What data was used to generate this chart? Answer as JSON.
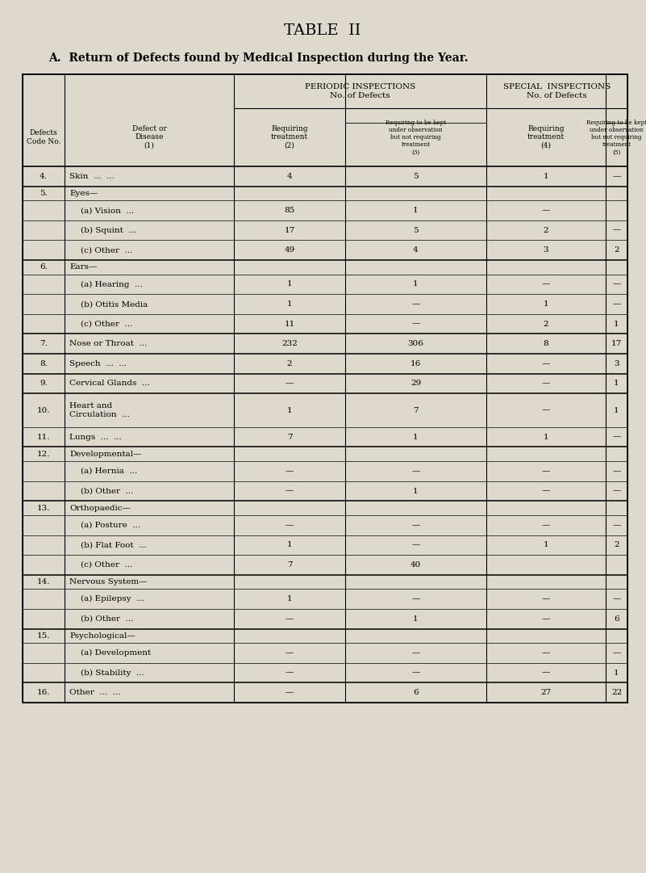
{
  "title": "TABLE  II",
  "subtitle": "A.  Return of Defects found by Medical Inspection during the Year.",
  "bg_color": "#ddd9cc",
  "rows": [
    {
      "code": "4.",
      "label": "Skin  ...  ...",
      "sub": false,
      "head": false,
      "c2": "4",
      "c3": "5",
      "c4": "1",
      "c5": "—"
    },
    {
      "code": "5.",
      "label": "Eyes—",
      "sub": false,
      "head": true,
      "c2": "",
      "c3": "",
      "c4": "",
      "c5": ""
    },
    {
      "code": "",
      "label": "(a) Vision  ...",
      "sub": true,
      "head": false,
      "c2": "85",
      "c3": "1",
      "c4": "—",
      "c5": ""
    },
    {
      "code": "",
      "label": "(b) Squint  ...",
      "sub": true,
      "head": false,
      "c2": "17",
      "c3": "5",
      "c4": "2",
      "c5": "—"
    },
    {
      "code": "",
      "label": "(c) Other  ...",
      "sub": true,
      "head": false,
      "c2": "49",
      "c3": "4",
      "c4": "3",
      "c5": "2"
    },
    {
      "code": "6.",
      "label": "Ears—",
      "sub": false,
      "head": true,
      "c2": "",
      "c3": "",
      "c4": "",
      "c5": ""
    },
    {
      "code": "",
      "label": "(a) Hearing  ...",
      "sub": true,
      "head": false,
      "c2": "1",
      "c3": "1",
      "c4": "—",
      "c5": "—"
    },
    {
      "code": "",
      "label": "(b) Otitis Media",
      "sub": true,
      "head": false,
      "c2": "1",
      "c3": "—",
      "c4": "1",
      "c5": "—"
    },
    {
      "code": "",
      "label": "(c) Other  ...",
      "sub": true,
      "head": false,
      "c2": "11",
      "c3": "—",
      "c4": "2",
      "c5": "1"
    },
    {
      "code": "7.",
      "label": "Nose or Throat  ...",
      "sub": false,
      "head": false,
      "c2": "232",
      "c3": "306",
      "c4": "8",
      "c5": "17"
    },
    {
      "code": "8.",
      "label": "Speech  ...  ...",
      "sub": false,
      "head": false,
      "c2": "2",
      "c3": "16",
      "c4": "—",
      "c5": "3"
    },
    {
      "code": "9.",
      "label": "Cervical Glands  ...",
      "sub": false,
      "head": false,
      "c2": "—",
      "c3": "29",
      "c4": "—",
      "c5": "1"
    },
    {
      "code": "10.",
      "label": "Heart and\nCirculation  ...",
      "sub": false,
      "head": false,
      "c2": "1",
      "c3": "7",
      "c4": "—",
      "c5": "1"
    },
    {
      "code": "11.",
      "label": "Lungs  ...  ...",
      "sub": false,
      "head": false,
      "c2": "7",
      "c3": "1",
      "c4": "1",
      "c5": "—"
    },
    {
      "code": "12.",
      "label": "Developmental—",
      "sub": false,
      "head": true,
      "c2": "",
      "c3": "",
      "c4": "",
      "c5": ""
    },
    {
      "code": "",
      "label": "(a) Hernia  ...",
      "sub": true,
      "head": false,
      "c2": "—",
      "c3": "—",
      "c4": "—",
      "c5": "—"
    },
    {
      "code": "",
      "label": "(b) Other  ...",
      "sub": true,
      "head": false,
      "c2": "—",
      "c3": "1",
      "c4": "—",
      "c5": "—"
    },
    {
      "code": "13.",
      "label": "Orthopaedic—",
      "sub": false,
      "head": true,
      "c2": "",
      "c3": "",
      "c4": "",
      "c5": ""
    },
    {
      "code": "",
      "label": "(a) Posture  ...",
      "sub": true,
      "head": false,
      "c2": "—",
      "c3": "—",
      "c4": "—",
      "c5": "—"
    },
    {
      "code": "",
      "label": "(b) Flat Foot  ...",
      "sub": true,
      "head": false,
      "c2": "1",
      "c3": "—",
      "c4": "1",
      "c5": "2"
    },
    {
      "code": "",
      "label": "(c) Other  ...",
      "sub": true,
      "head": false,
      "c2": "7",
      "c3": "40",
      "c4": "",
      "c5": ""
    },
    {
      "code": "14.",
      "label": "Nervous System—",
      "sub": false,
      "head": true,
      "c2": "",
      "c3": "",
      "c4": "",
      "c5": ""
    },
    {
      "code": "",
      "label": "(a) Epilepsy  ...",
      "sub": true,
      "head": false,
      "c2": "1",
      "c3": "—",
      "c4": "—",
      "c5": "—"
    },
    {
      "code": "",
      "label": "(b) Other  ...",
      "sub": true,
      "head": false,
      "c2": "—",
      "c3": "1",
      "c4": "—",
      "c5": "6"
    },
    {
      "code": "15.",
      "label": "Psychological—",
      "sub": false,
      "head": true,
      "c2": "",
      "c3": "",
      "c4": "",
      "c5": ""
    },
    {
      "code": "",
      "label": "(a) Development",
      "sub": true,
      "head": false,
      "c2": "—",
      "c3": "—",
      "c4": "—",
      "c5": "—"
    },
    {
      "code": "",
      "label": "(b) Stability  ...",
      "sub": true,
      "head": false,
      "c2": "—",
      "c3": "—",
      "c4": "—",
      "c5": "1"
    },
    {
      "code": "16.",
      "label": "Other  ...  ...",
      "sub": false,
      "head": false,
      "c2": "—",
      "c3": "6",
      "c4": "27",
      "c5": "22"
    }
  ]
}
